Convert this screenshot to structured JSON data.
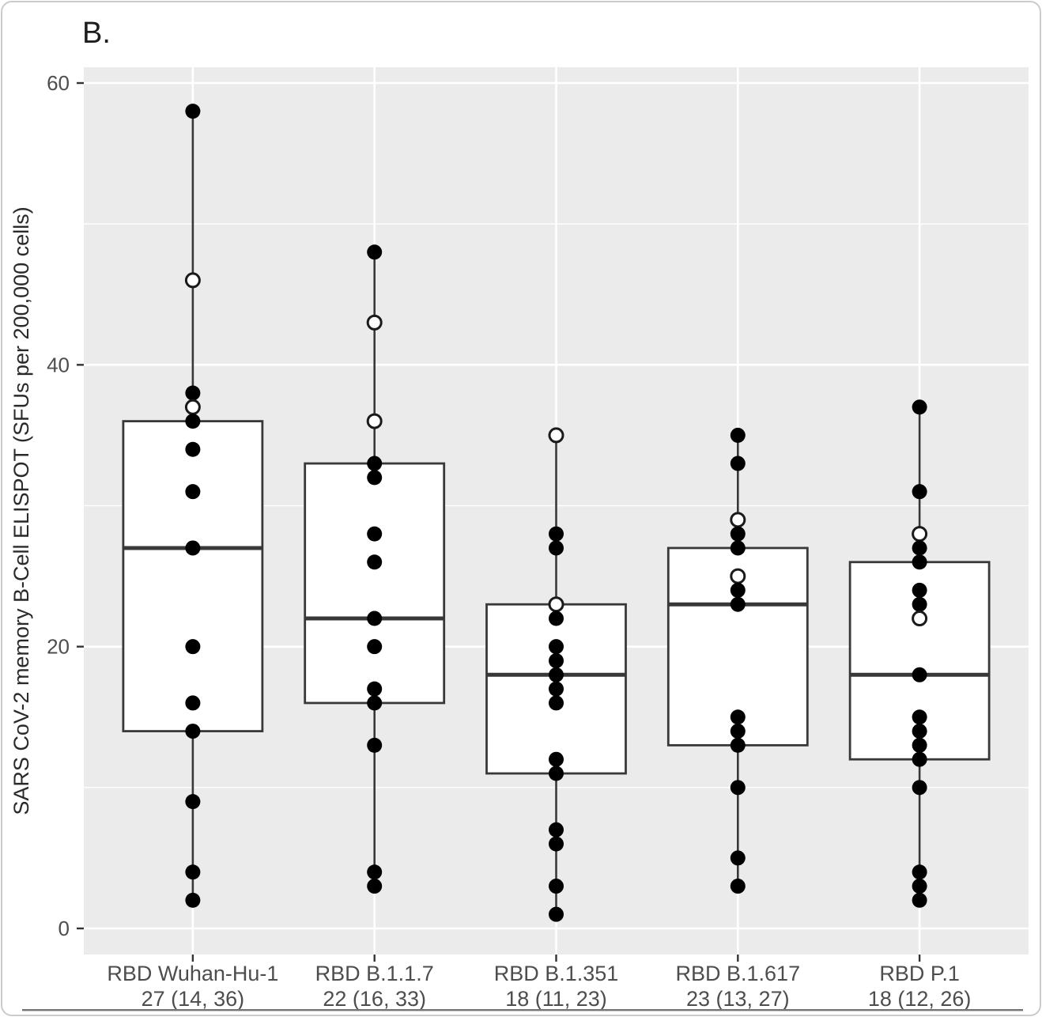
{
  "panel_label": "B.",
  "axis": {
    "y_title": "SARS CoV-2 memory B-Cell ELISPOT (SFUs per 200,000 cells)",
    "y_ticks": [
      0,
      20,
      40,
      60
    ],
    "y_minor_ticks": [
      10,
      30,
      50
    ]
  },
  "colors": {
    "panel_bg": "#ebebeb",
    "gridline": "#ffffff",
    "box_stroke": "#383838",
    "box_fill": "#ffffff",
    "point_fill": "#000000",
    "open_point_fill": "#ffffff",
    "tick_mark": "#333333",
    "tick_text": "#4d4d4d",
    "frame_border": "#cbcbcb",
    "bottom_rule": "#757575"
  },
  "chart_data": {
    "type": "boxplot",
    "title": "B.",
    "xlabel": "",
    "ylabel": "SARS CoV-2 memory B-Cell ELISPOT (SFUs per 200,000 cells)",
    "ylim": [
      -2,
      61.5
    ],
    "y_major_gridlines": [
      0,
      20,
      40,
      60
    ],
    "y_minor_gridlines": [
      10,
      30,
      50
    ],
    "grid": true,
    "legend": false,
    "categories": [
      "RBD Wuhan-Hu-1",
      "RBD B.1.1.7",
      "RBD B.1.351",
      "RBD B.1.617",
      "RBD P.1"
    ],
    "category_stats": [
      "27 (14, 36)",
      "22 (16, 33)",
      "18 (11, 23)",
      "23 (13, 27)",
      "18 (12, 26)"
    ],
    "series": [
      {
        "name": "RBD Wuhan-Hu-1",
        "stat_label": "27 (14, 36)",
        "q1": 14,
        "median": 27,
        "q3": 36,
        "whisker_low": 2,
        "whisker_high": 58,
        "points": [
          {
            "value": 58,
            "open": false
          },
          {
            "value": 46,
            "open": true
          },
          {
            "value": 38,
            "open": false
          },
          {
            "value": 37,
            "open": true
          },
          {
            "value": 36,
            "open": false
          },
          {
            "value": 34,
            "open": false
          },
          {
            "value": 31,
            "open": false
          },
          {
            "value": 27,
            "open": false
          },
          {
            "value": 20,
            "open": false
          },
          {
            "value": 16,
            "open": false
          },
          {
            "value": 14,
            "open": false
          },
          {
            "value": 9,
            "open": false
          },
          {
            "value": 4,
            "open": false
          },
          {
            "value": 2,
            "open": false
          }
        ]
      },
      {
        "name": "RBD B.1.1.7",
        "stat_label": "22 (16, 33)",
        "q1": 16,
        "median": 22,
        "q3": 33,
        "whisker_low": 3,
        "whisker_high": 48,
        "points": [
          {
            "value": 48,
            "open": false
          },
          {
            "value": 43,
            "open": true
          },
          {
            "value": 36,
            "open": true
          },
          {
            "value": 33,
            "open": false
          },
          {
            "value": 32,
            "open": false
          },
          {
            "value": 28,
            "open": false
          },
          {
            "value": 26,
            "open": false
          },
          {
            "value": 22,
            "open": false
          },
          {
            "value": 20,
            "open": false
          },
          {
            "value": 17,
            "open": false
          },
          {
            "value": 16,
            "open": false
          },
          {
            "value": 13,
            "open": false
          },
          {
            "value": 4,
            "open": false
          },
          {
            "value": 3,
            "open": false
          }
        ]
      },
      {
        "name": "RBD B.1.351",
        "stat_label": "18 (11, 23)",
        "q1": 11,
        "median": 18,
        "q3": 23,
        "whisker_low": 1,
        "whisker_high": 35,
        "points": [
          {
            "value": 35,
            "open": true
          },
          {
            "value": 28,
            "open": false
          },
          {
            "value": 27,
            "open": false
          },
          {
            "value": 23,
            "open": true
          },
          {
            "value": 22,
            "open": false
          },
          {
            "value": 20,
            "open": false
          },
          {
            "value": 19,
            "open": false
          },
          {
            "value": 18,
            "open": false
          },
          {
            "value": 17,
            "open": false
          },
          {
            "value": 16,
            "open": false
          },
          {
            "value": 12,
            "open": false
          },
          {
            "value": 11,
            "open": false
          },
          {
            "value": 7,
            "open": false
          },
          {
            "value": 6,
            "open": false
          },
          {
            "value": 3,
            "open": false
          },
          {
            "value": 1,
            "open": false
          }
        ]
      },
      {
        "name": "RBD B.1.617",
        "stat_label": "23 (13, 27)",
        "q1": 13,
        "median": 23,
        "q3": 27,
        "whisker_low": 3,
        "whisker_high": 35,
        "points": [
          {
            "value": 35,
            "open": false
          },
          {
            "value": 33,
            "open": false
          },
          {
            "value": 29,
            "open": true
          },
          {
            "value": 28,
            "open": false
          },
          {
            "value": 27,
            "open": false
          },
          {
            "value": 25,
            "open": true
          },
          {
            "value": 24,
            "open": false
          },
          {
            "value": 23,
            "open": false
          },
          {
            "value": 15,
            "open": false
          },
          {
            "value": 14,
            "open": false
          },
          {
            "value": 13,
            "open": false
          },
          {
            "value": 10,
            "open": false
          },
          {
            "value": 5,
            "open": false
          },
          {
            "value": 3,
            "open": false
          }
        ]
      },
      {
        "name": "RBD P.1",
        "stat_label": "18 (12, 26)",
        "q1": 12,
        "median": 18,
        "q3": 26,
        "whisker_low": 2,
        "whisker_high": 37,
        "points": [
          {
            "value": 37,
            "open": false
          },
          {
            "value": 31,
            "open": false
          },
          {
            "value": 28,
            "open": true
          },
          {
            "value": 27,
            "open": false
          },
          {
            "value": 26,
            "open": false
          },
          {
            "value": 24,
            "open": false
          },
          {
            "value": 23,
            "open": false
          },
          {
            "value": 22,
            "open": true
          },
          {
            "value": 18,
            "open": false
          },
          {
            "value": 15,
            "open": false
          },
          {
            "value": 14,
            "open": false
          },
          {
            "value": 13,
            "open": false
          },
          {
            "value": 12,
            "open": false
          },
          {
            "value": 10,
            "open": false
          },
          {
            "value": 4,
            "open": false
          },
          {
            "value": 3,
            "open": false
          },
          {
            "value": 2,
            "open": false
          }
        ]
      }
    ]
  }
}
